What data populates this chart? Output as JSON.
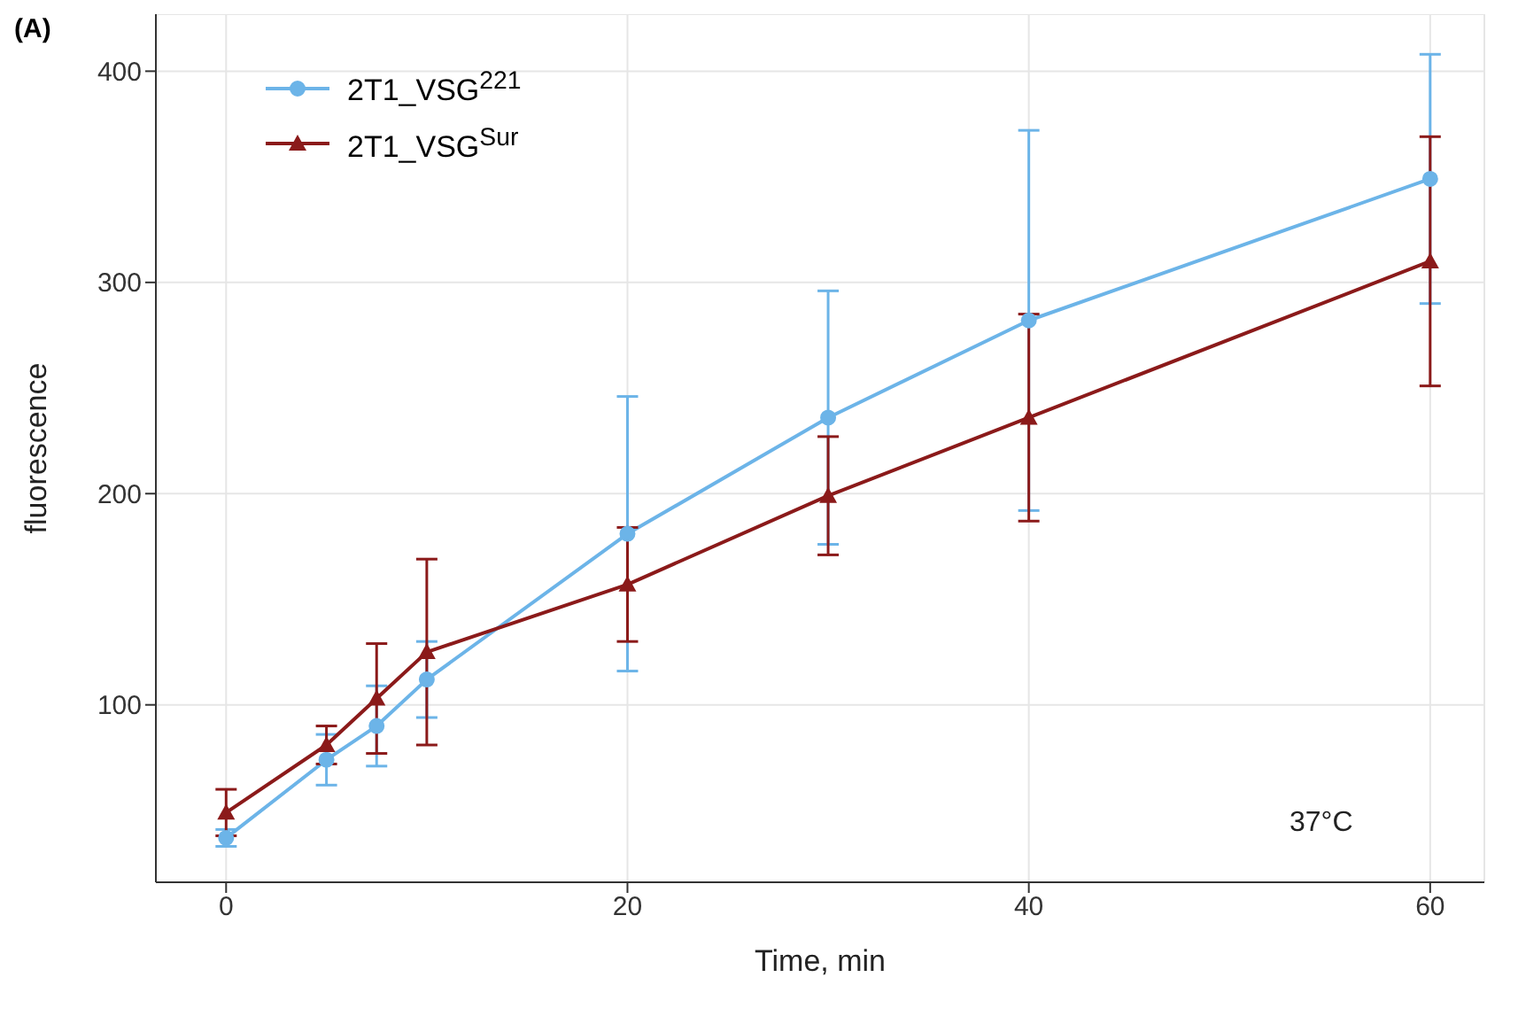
{
  "chart_data": {
    "type": "line",
    "xlabel": "Time, min",
    "ylabel": "fluorescence",
    "x": [
      0,
      5,
      7.5,
      10,
      20,
      30,
      40,
      60
    ],
    "series": [
      {
        "name": "2T1_VSG$^{221}$",
        "color": "#6cb4e8",
        "marker": "circle",
        "values": [
          37,
          74,
          90,
          112,
          181,
          236,
          282,
          349
        ],
        "errors": [
          4,
          12,
          19,
          18,
          65,
          60,
          90,
          59
        ]
      },
      {
        "name": "2T1_VSG$^{Sur}$",
        "color": "#8b1a1a",
        "marker": "triangle",
        "values": [
          49,
          81,
          103,
          125,
          157,
          199,
          236,
          310
        ],
        "errors": [
          11,
          9,
          26,
          44,
          27,
          28,
          49,
          59
        ]
      }
    ],
    "xlim": [
      -3.5,
      62.7
    ],
    "xticks": [
      0,
      20,
      40,
      60
    ],
    "ylim": [
      16,
      427
    ],
    "yticks": [
      100,
      200,
      300,
      400
    ],
    "grid": true,
    "legend": "top left",
    "annotations": [
      "(A)",
      "37°C"
    ]
  }
}
